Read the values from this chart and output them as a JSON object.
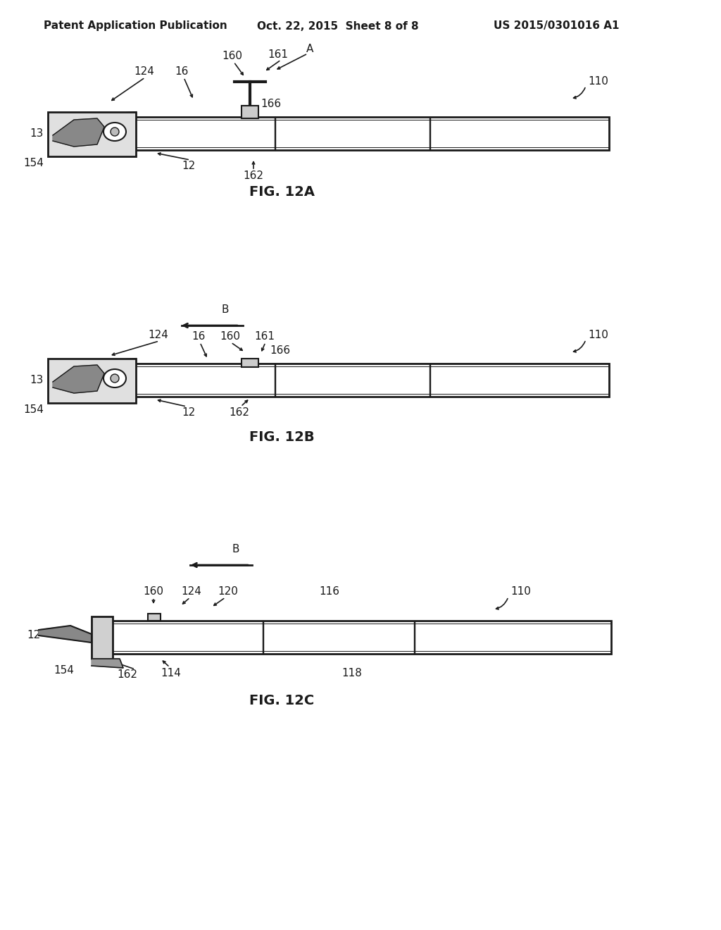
{
  "bg_color": "#ffffff",
  "header_left": "Patent Application Publication",
  "header_center": "Oct. 22, 2015  Sheet 8 of 8",
  "header_right": "US 2015/0301016 A1",
  "text_color": "#1a1a1a",
  "line_color": "#1a1a1a"
}
